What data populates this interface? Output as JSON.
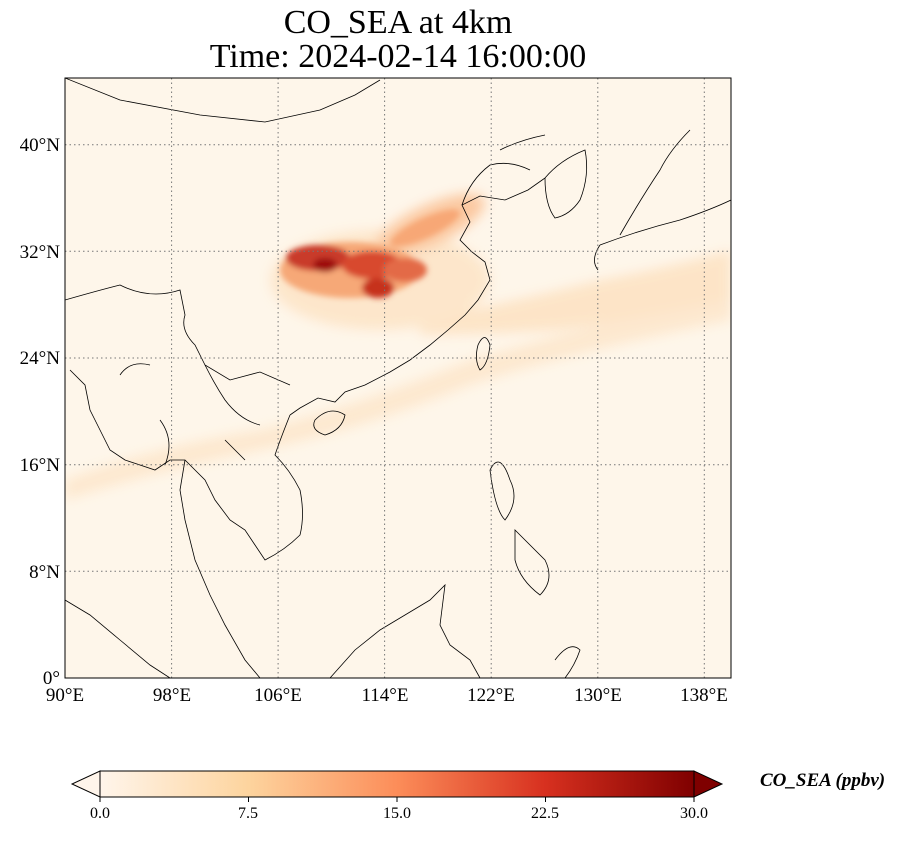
{
  "title_line1": "CO_SEA at 4km",
  "title_line2": "Time: 2024-02-14 16:00:00",
  "lat_ticks": [
    "40°N",
    "32°N",
    "24°N",
    "16°N",
    "8°N",
    "0°"
  ],
  "lon_ticks": [
    "90°E",
    "98°E",
    "106°E",
    "114°E",
    "122°E",
    "130°E",
    "138°E"
  ],
  "colorbar": {
    "label": "CO_SEA (ppbv)",
    "ticks": [
      "0.0",
      "7.5",
      "15.0",
      "22.5",
      "30.0"
    ],
    "colors": [
      "#fff5eb",
      "#fdd49e",
      "#fc8d59",
      "#d7301f",
      "#7f0000"
    ],
    "range": [
      0,
      30
    ]
  },
  "map": {
    "lon_range": [
      90,
      140
    ],
    "lat_range": [
      0,
      45
    ],
    "background_color": "#fef6ea",
    "gridlines": "dotted",
    "colormap": "OrRd"
  }
}
